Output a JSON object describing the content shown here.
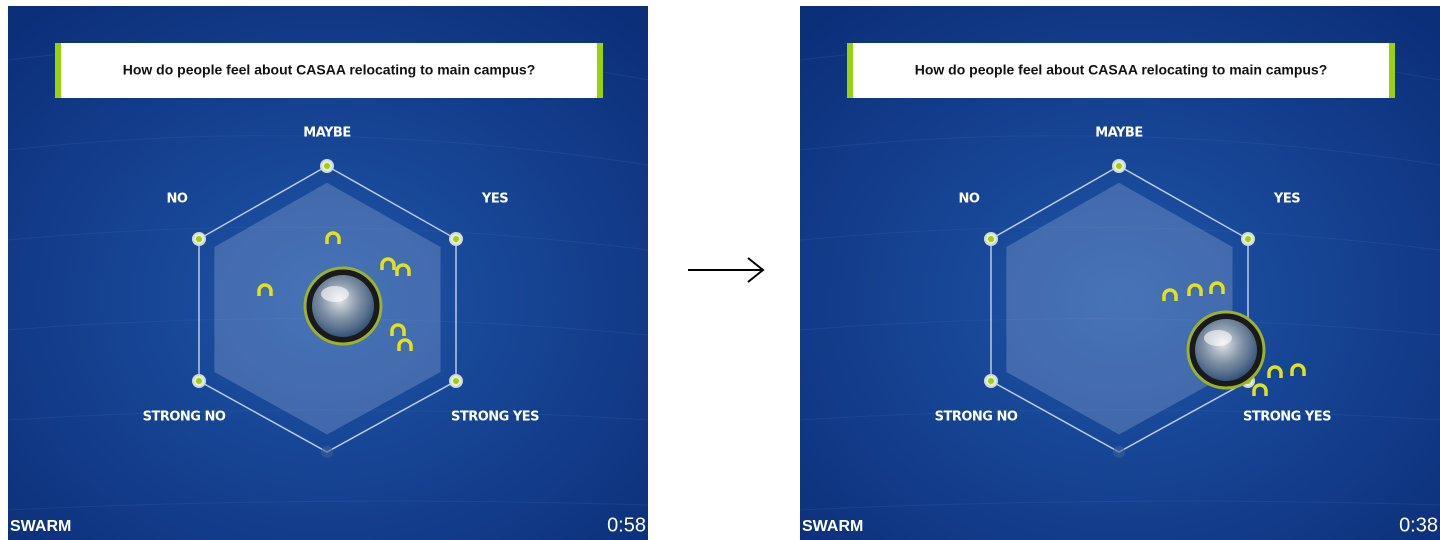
{
  "panels": [
    {
      "question": "How do people feel about CASAA relocating to main campus?",
      "options": {
        "top": "MAYBE",
        "upper_right": "YES",
        "upper_left": "NO",
        "lower_left": "STRONG NO",
        "lower_right": "STRONG YES"
      },
      "brand": "SWARM",
      "timer": "0:58"
    },
    {
      "question": "How do people feel about CASAA relocating to main campus?",
      "options": {
        "top": "MAYBE",
        "upper_right": "YES",
        "upper_left": "NO",
        "lower_left": "STRONG NO",
        "lower_right": "STRONG YES"
      },
      "brand": "SWARM",
      "timer": "0:38"
    }
  ]
}
